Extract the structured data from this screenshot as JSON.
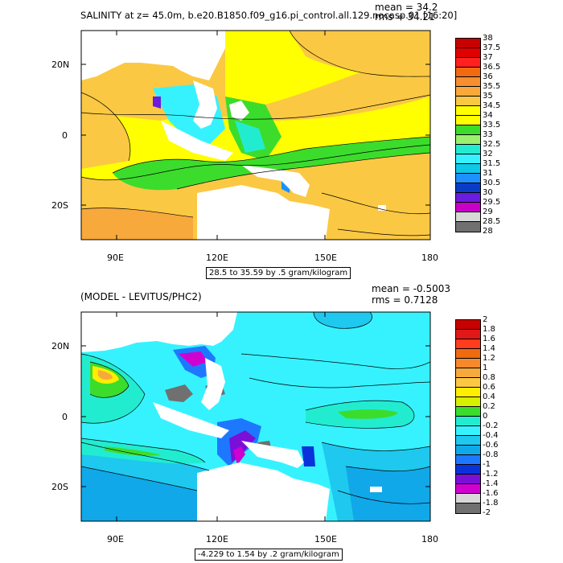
{
  "panel1": {
    "title": "SALINITY at z=  45.0m, b.e20.B1850.f09_g16.pi_control.all.129.nocasp.01 [16:20]",
    "mean": "mean = 34.2",
    "rms": "rms = 34.21",
    "caption": "28.5 to 35.59 by .5 gram/kilogram",
    "lon_labels": [
      "90E",
      "120E",
      "150E",
      "180"
    ],
    "lat_labels": [
      "20N",
      "0",
      "20S"
    ],
    "colorbar_labels": [
      "38",
      "37.5",
      "37",
      "36.5",
      "36",
      "35.5",
      "35",
      "34.5",
      "34",
      "33.5",
      "33",
      "32.5",
      "32",
      "31.5",
      "31",
      "30.5",
      "30",
      "29.5",
      "29",
      "28.5",
      "28"
    ],
    "colors": [
      "#c80000",
      "#e00000",
      "#ff2020",
      "#f06a10",
      "#f58f30",
      "#f8a93c",
      "#fbc843",
      "#ffff00",
      "#ffff00",
      "#3cdc2c",
      "#9df06e",
      "#22ecd0",
      "#36f2ff",
      "#0fc8e8",
      "#1e90ff",
      "#0a3cc8",
      "#6a1ce0",
      "#c800c8",
      "#d8d8d8",
      "#707070"
    ]
  },
  "panel2": {
    "title": "(MODEL - LEVITUS/PHC2)",
    "mean": "mean = -0.5003",
    "rms": "rms = 0.7128",
    "caption": "-4.229 to 1.54 by .2 gram/kilogram",
    "lon_labels": [
      "90E",
      "120E",
      "150E",
      "180"
    ],
    "lat_labels": [
      "20N",
      "0",
      "20S"
    ],
    "colorbar_labels": [
      "2",
      "1.8",
      "1.6",
      "1.4",
      "1.2",
      "1",
      "0.8",
      "0.6",
      "0.4",
      "0.2",
      "0",
      "-0.2",
      "-0.4",
      "-0.6",
      "-0.8",
      "-1",
      "-1.2",
      "-1.4",
      "-1.6",
      "-1.8",
      "-2"
    ],
    "colors": [
      "#c80000",
      "#e01818",
      "#ff3c1e",
      "#f06a10",
      "#f5892c",
      "#f8a93c",
      "#fbc843",
      "#ffee00",
      "#d6f000",
      "#3cdc2c",
      "#22ecd0",
      "#36f2ff",
      "#1ec8ee",
      "#10a8e8",
      "#1e78ff",
      "#0a32dc",
      "#7a10d8",
      "#d000d0",
      "#d8d8d8",
      "#707070"
    ]
  }
}
